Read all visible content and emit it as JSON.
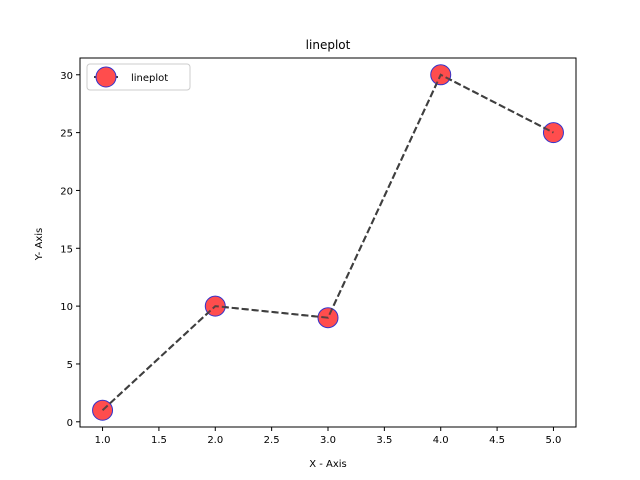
{
  "chart_data": {
    "type": "line",
    "title": "lineplot",
    "xlabel": "X - Axis",
    "ylabel": "Y- Axis",
    "x": [
      1,
      2,
      3,
      4,
      5
    ],
    "series": [
      {
        "name": "lineplot",
        "values": [
          1,
          10,
          9,
          30,
          25
        ]
      }
    ],
    "xlim": [
      0.8,
      5.2
    ],
    "ylim": [
      -0.45,
      31.45
    ],
    "xticks": [
      "1.0",
      "1.5",
      "2.0",
      "2.5",
      "3.0",
      "3.5",
      "4.0",
      "4.5",
      "5.0"
    ],
    "yticks": [
      "0",
      "5",
      "10",
      "15",
      "20",
      "25",
      "30"
    ],
    "grid": false,
    "legend_position": "upper-left",
    "line_style": "dashed",
    "colors": {
      "line": "#404040",
      "marker_fill": "#ff4d4d",
      "marker_edge": "#3333cc"
    }
  }
}
